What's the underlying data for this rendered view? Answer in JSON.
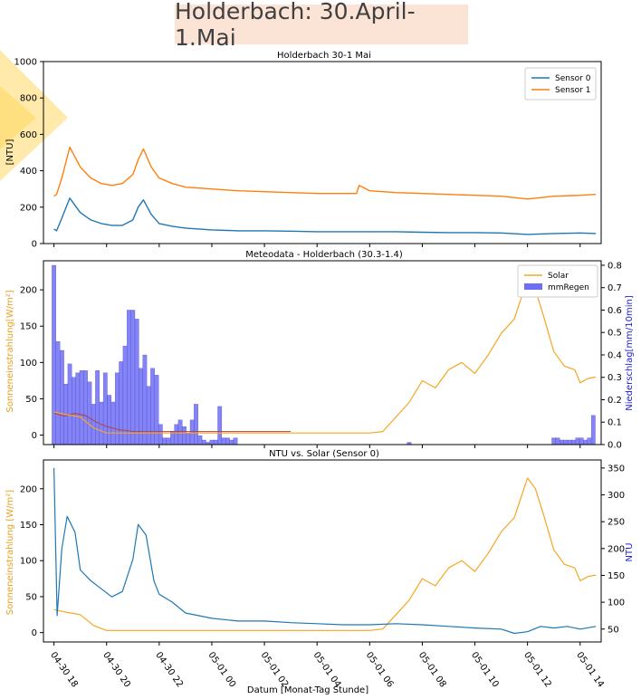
{
  "page_title": "Holderbach: 30.April-1.Mai",
  "colors": {
    "sensor0": "#1f77b4",
    "sensor1": "#ff7f0e",
    "solar": "#f5a623",
    "rain": "#6f6ff5",
    "rain_line": "#b84040",
    "ylabel_solar": "#e8a020",
    "ylabel_rain": "#2222cc",
    "deco": "#ffd966"
  },
  "chart_data": [
    {
      "type": "line",
      "title": "Holderbach 30-1 Mai",
      "ylabel": "[NTU]",
      "ylim": [
        0,
        1000
      ],
      "yticks": [
        0,
        200,
        400,
        600,
        800,
        1000
      ],
      "grid": false,
      "legend": "top-right",
      "x_unit": "hours since 04-30 00:00",
      "xlim": [
        17.6,
        38.8
      ],
      "series": [
        {
          "name": "Sensor 0",
          "x": [
            18.0,
            18.1,
            18.3,
            18.6,
            19.0,
            19.4,
            19.8,
            20.2,
            20.6,
            21.0,
            21.2,
            21.4,
            21.7,
            22.0,
            22.5,
            23.0,
            24.0,
            25.0,
            26.0,
            27.0,
            28.0,
            29.0,
            30.0,
            31.0,
            32.0,
            33.0,
            34.0,
            35.0,
            36.0,
            37.0,
            38.0,
            38.6
          ],
          "values": [
            80,
            70,
            140,
            250,
            170,
            130,
            110,
            100,
            100,
            130,
            200,
            240,
            160,
            110,
            95,
            85,
            75,
            70,
            70,
            68,
            65,
            65,
            65,
            65,
            62,
            60,
            60,
            58,
            50,
            55,
            58,
            55
          ]
        },
        {
          "name": "Sensor 1",
          "x": [
            18.0,
            18.1,
            18.3,
            18.6,
            19.0,
            19.4,
            19.8,
            20.2,
            20.6,
            21.0,
            21.2,
            21.4,
            21.7,
            22.0,
            22.5,
            23.0,
            24.0,
            25.0,
            26.0,
            27.0,
            28.0,
            29.0,
            29.5,
            29.6,
            30.0,
            31.0,
            32.0,
            33.0,
            34.0,
            35.0,
            36.0,
            37.0,
            38.0,
            38.6
          ],
          "values": [
            260,
            270,
            360,
            530,
            420,
            360,
            330,
            320,
            330,
            380,
            460,
            520,
            420,
            360,
            330,
            310,
            300,
            290,
            285,
            280,
            275,
            275,
            275,
            320,
            290,
            280,
            275,
            270,
            265,
            260,
            245,
            260,
            265,
            270
          ]
        }
      ]
    },
    {
      "type": "bar",
      "title": "Meteodata - Holderbach (30.3-1.4)",
      "ylabel": "Sonneneinstrahlung[W/m²]",
      "ylabel_right": "Niederschlag[mm/10min]",
      "ylim": [
        -13,
        240
      ],
      "yticks": [
        0,
        50,
        100,
        150,
        200
      ],
      "ylim_right": [
        0,
        0.82
      ],
      "yticks_right": [
        0.0,
        0.1,
        0.2,
        0.3,
        0.4,
        0.5,
        0.6,
        0.7,
        0.8
      ],
      "legend": "top-right",
      "x_unit": "hours since 04-30 00:00",
      "xlim": [
        17.6,
        38.8
      ],
      "series": [
        {
          "name": "Solar",
          "x": [
            18.0,
            18.5,
            19.0,
            19.5,
            20.0,
            20.5,
            21.0,
            22.0,
            23.0,
            24.0,
            25.0,
            26.0,
            27.0,
            28.0,
            29.0,
            30.0,
            30.5,
            31.0,
            31.5,
            32.0,
            32.5,
            33.0,
            33.5,
            34.0,
            34.5,
            35.0,
            35.5,
            36.0,
            36.3,
            36.6,
            37.0,
            37.4,
            37.8,
            38.0,
            38.3,
            38.6
          ],
          "values": [
            32,
            28,
            25,
            10,
            3,
            3,
            3,
            3,
            3,
            3,
            3,
            3,
            3,
            3,
            3,
            3,
            5,
            25,
            45,
            75,
            65,
            90,
            100,
            85,
            110,
            140,
            160,
            215,
            200,
            165,
            115,
            95,
            90,
            72,
            78,
            80
          ]
        },
        {
          "name": "mmRegen",
          "type": "bar",
          "x": [
            18.0,
            18.15,
            18.3,
            18.45,
            18.6,
            18.75,
            18.9,
            19.05,
            19.2,
            19.35,
            19.5,
            19.65,
            19.8,
            19.95,
            20.1,
            20.25,
            20.4,
            20.55,
            20.7,
            20.85,
            21.0,
            21.15,
            21.3,
            21.45,
            21.6,
            21.75,
            21.9,
            22.05,
            22.2,
            22.35,
            22.5,
            22.65,
            22.8,
            22.95,
            23.1,
            23.25,
            23.4,
            23.55,
            23.7,
            23.85,
            24.0,
            24.15,
            24.3,
            24.45,
            24.6,
            24.75,
            24.9,
            31.5,
            37.0,
            37.15,
            37.3,
            37.45,
            37.6,
            37.75,
            37.9,
            38.05,
            38.2,
            38.35,
            38.5
          ],
          "values": [
            0.8,
            0.46,
            0.42,
            0.27,
            0.36,
            0.3,
            0.32,
            0.33,
            0.33,
            0.28,
            0.18,
            0.33,
            0.19,
            0.32,
            0.22,
            0.19,
            0.32,
            0.37,
            0.44,
            0.6,
            0.6,
            0.56,
            0.34,
            0.4,
            0.26,
            0.34,
            0.31,
            0.09,
            0.03,
            0.03,
            0.06,
            0.09,
            0.11,
            0.08,
            0.05,
            0.11,
            0.18,
            0.04,
            0.02,
            0.01,
            0.02,
            0.02,
            0.17,
            0.03,
            0.03,
            0.02,
            0.03,
            0.01,
            0.03,
            0.03,
            0.02,
            0.02,
            0.02,
            0.02,
            0.03,
            0.03,
            0.02,
            0.03,
            0.13
          ]
        },
        {
          "name": "mmRegen (line)",
          "x": [
            18.0,
            18.4,
            18.8,
            19.2,
            19.6,
            20.0,
            20.4,
            21.0,
            22.0,
            23.0,
            24.0,
            25.0,
            27.0
          ],
          "values": [
            30,
            26,
            30,
            27,
            18,
            12,
            8,
            5,
            5,
            5,
            5,
            5,
            5
          ]
        }
      ]
    },
    {
      "type": "line",
      "title": "NTU vs. Solar (Sensor 0)",
      "xlabel": "Datum [Monat-Tag Stunde]",
      "ylabel": "Sonneneinstrahlung [W/m²]",
      "ylabel_right": "NTU",
      "ylim": [
        -13,
        240
      ],
      "yticks": [
        0,
        50,
        100,
        150,
        200
      ],
      "ylim_right": [
        26,
        365
      ],
      "yticks_right": [
        50,
        100,
        150,
        200,
        250,
        300,
        350
      ],
      "x_unit": "hours since 04-30 00:00",
      "xlim": [
        17.6,
        38.8
      ],
      "xtick_values": [
        18,
        20,
        22,
        24,
        26,
        28,
        30,
        32,
        34,
        36,
        38
      ],
      "xtick_labels": [
        "04-30 18",
        "04-30 20",
        "04-30 22",
        "05-01 00",
        "05-01 02",
        "05-01 04",
        "05-01 06",
        "05-01 08",
        "05-01 10",
        "05-01 12",
        "05-01 14"
      ],
      "series": [
        {
          "name": "Solar",
          "x": [
            18.0,
            18.5,
            19.0,
            19.5,
            20.0,
            20.5,
            21.0,
            22.0,
            23.0,
            24.0,
            25.0,
            26.0,
            27.0,
            28.0,
            29.0,
            30.0,
            30.5,
            31.0,
            31.5,
            32.0,
            32.5,
            33.0,
            33.5,
            34.0,
            34.5,
            35.0,
            35.5,
            36.0,
            36.3,
            36.6,
            37.0,
            37.4,
            37.8,
            38.0,
            38.3,
            38.6
          ],
          "values": [
            32,
            28,
            25,
            10,
            3,
            3,
            3,
            3,
            3,
            3,
            3,
            3,
            3,
            3,
            3,
            3,
            5,
            25,
            45,
            75,
            65,
            90,
            100,
            85,
            110,
            140,
            160,
            215,
            200,
            165,
            115,
            95,
            90,
            72,
            78,
            80
          ]
        },
        {
          "name": "NTU",
          "axis": "right",
          "x": [
            18.0,
            18.12,
            18.3,
            18.5,
            18.8,
            19.0,
            19.4,
            19.8,
            20.2,
            20.6,
            21.0,
            21.2,
            21.5,
            21.8,
            22.0,
            22.5,
            23.0,
            24.0,
            25.0,
            26.0,
            27.0,
            28.0,
            29.0,
            30.0,
            31.0,
            32.0,
            33.0,
            34.0,
            35.0,
            35.5,
            36.0,
            36.5,
            37.0,
            37.5,
            38.0,
            38.6
          ],
          "values": [
            350,
            75,
            200,
            260,
            230,
            160,
            140,
            125,
            110,
            120,
            180,
            245,
            225,
            140,
            115,
            100,
            80,
            70,
            65,
            65,
            62,
            60,
            58,
            58,
            60,
            58,
            55,
            52,
            50,
            42,
            45,
            55,
            52,
            55,
            50,
            55
          ]
        }
      ]
    }
  ]
}
